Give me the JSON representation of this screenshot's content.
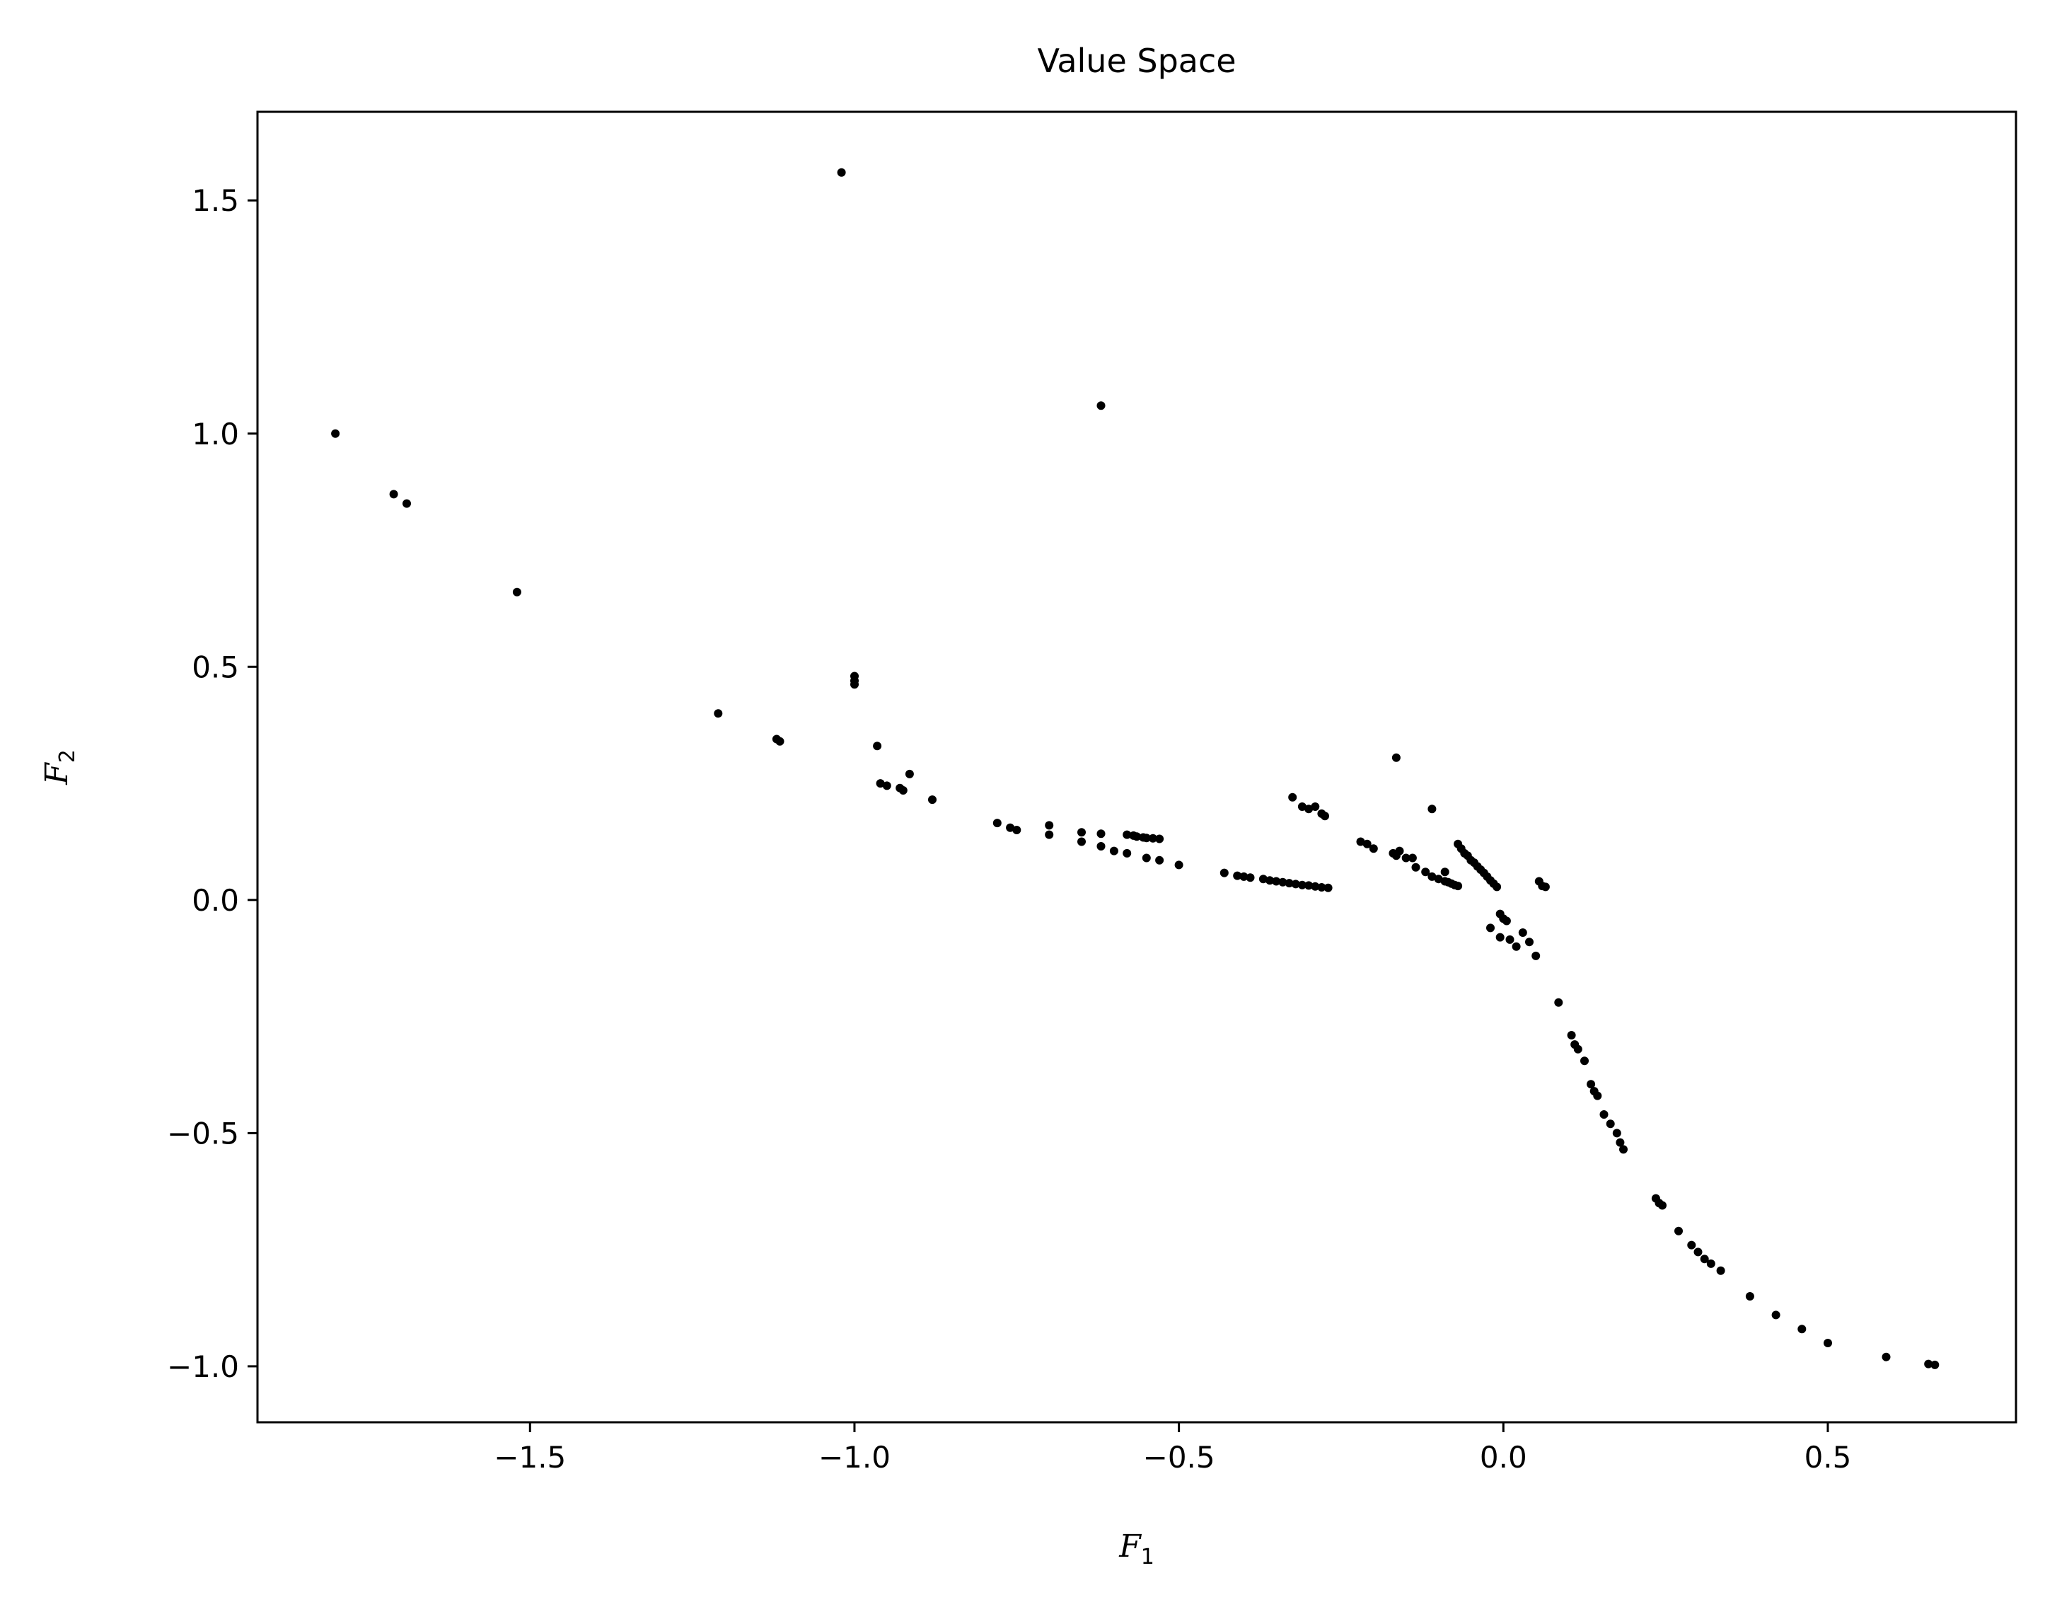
{
  "chart_data": {
    "type": "scatter",
    "title": "Value Space",
    "xlabel": {
      "base": "F",
      "sub": "1"
    },
    "ylabel": {
      "base": "F",
      "sub": "2"
    },
    "xlim": [
      -1.92,
      0.79
    ],
    "ylim": [
      -1.12,
      1.69
    ],
    "xticks": [
      -1.5,
      -1.0,
      -0.5,
      0.0,
      0.5
    ],
    "xtick_labels": [
      "−1.5",
      "−1.0",
      "−0.5",
      "0.0",
      "0.5"
    ],
    "yticks": [
      -1.0,
      -0.5,
      0.0,
      0.5,
      1.0,
      1.5
    ],
    "ytick_labels": [
      "−1.0",
      "−0.5",
      "0.0",
      "0.5",
      "1.0",
      "1.5"
    ],
    "grid": false,
    "marker_color": "#000000",
    "points": [
      [
        -1.8,
        1.0
      ],
      [
        -1.71,
        0.87
      ],
      [
        -1.69,
        0.85
      ],
      [
        -1.52,
        0.66
      ],
      [
        -1.02,
        1.56
      ],
      [
        -0.62,
        1.06
      ],
      [
        -1.21,
        0.4
      ],
      [
        -1.12,
        0.345
      ],
      [
        -1.115,
        0.34
      ],
      [
        -1.0,
        0.48
      ],
      [
        -1.0,
        0.47
      ],
      [
        -1.0,
        0.462
      ],
      [
        -0.965,
        0.33
      ],
      [
        -0.96,
        0.25
      ],
      [
        -0.95,
        0.245
      ],
      [
        -0.93,
        0.24
      ],
      [
        -0.925,
        0.235
      ],
      [
        -0.915,
        0.27
      ],
      [
        -0.88,
        0.215
      ],
      [
        -0.78,
        0.165
      ],
      [
        -0.76,
        0.155
      ],
      [
        -0.75,
        0.15
      ],
      [
        -0.7,
        0.16
      ],
      [
        -0.7,
        0.14
      ],
      [
        -0.65,
        0.145
      ],
      [
        -0.65,
        0.125
      ],
      [
        -0.62,
        0.142
      ],
      [
        -0.62,
        0.115
      ],
      [
        -0.6,
        0.105
      ],
      [
        -0.58,
        0.1
      ],
      [
        -0.58,
        0.14
      ],
      [
        -0.57,
        0.138
      ],
      [
        -0.565,
        0.136
      ],
      [
        -0.555,
        0.134
      ],
      [
        -0.55,
        0.133
      ],
      [
        -0.54,
        0.132
      ],
      [
        -0.53,
        0.131
      ],
      [
        -0.55,
        0.09
      ],
      [
        -0.53,
        0.085
      ],
      [
        -0.5,
        0.075
      ],
      [
        -0.43,
        0.058
      ],
      [
        -0.41,
        0.052
      ],
      [
        -0.4,
        0.05
      ],
      [
        -0.39,
        0.048
      ],
      [
        -0.37,
        0.045
      ],
      [
        -0.36,
        0.042
      ],
      [
        -0.35,
        0.04
      ],
      [
        -0.34,
        0.038
      ],
      [
        -0.33,
        0.036
      ],
      [
        -0.32,
        0.034
      ],
      [
        -0.31,
        0.032
      ],
      [
        -0.3,
        0.031
      ],
      [
        -0.29,
        0.029
      ],
      [
        -0.28,
        0.027
      ],
      [
        -0.27,
        0.026
      ],
      [
        -0.325,
        0.22
      ],
      [
        -0.31,
        0.2
      ],
      [
        -0.3,
        0.195
      ],
      [
        -0.29,
        0.2
      ],
      [
        -0.28,
        0.185
      ],
      [
        -0.275,
        0.18
      ],
      [
        -0.22,
        0.125
      ],
      [
        -0.21,
        0.12
      ],
      [
        -0.2,
        0.11
      ],
      [
        -0.17,
        0.1
      ],
      [
        -0.165,
        0.095
      ],
      [
        -0.16,
        0.105
      ],
      [
        -0.15,
        0.09
      ],
      [
        -0.14,
        0.09
      ],
      [
        -0.135,
        0.07
      ],
      [
        -0.12,
        0.06
      ],
      [
        -0.11,
        0.05
      ],
      [
        -0.1,
        0.045
      ],
      [
        -0.09,
        0.04
      ],
      [
        -0.085,
        0.038
      ],
      [
        -0.08,
        0.035
      ],
      [
        -0.075,
        0.032
      ],
      [
        -0.07,
        0.03
      ],
      [
        -0.165,
        0.305
      ],
      [
        -0.11,
        0.195
      ],
      [
        -0.09,
        0.06
      ],
      [
        -0.07,
        0.12
      ],
      [
        -0.065,
        0.11
      ],
      [
        -0.06,
        0.1
      ],
      [
        -0.055,
        0.095
      ],
      [
        -0.05,
        0.085
      ],
      [
        -0.045,
        0.08
      ],
      [
        -0.04,
        0.072
      ],
      [
        -0.035,
        0.065
      ],
      [
        -0.03,
        0.058
      ],
      [
        -0.025,
        0.05
      ],
      [
        -0.02,
        0.042
      ],
      [
        -0.015,
        0.035
      ],
      [
        -0.01,
        0.028
      ],
      [
        -0.005,
        -0.03
      ],
      [
        0.0,
        -0.04
      ],
      [
        0.005,
        -0.045
      ],
      [
        -0.02,
        -0.06
      ],
      [
        -0.005,
        -0.08
      ],
      [
        0.01,
        -0.085
      ],
      [
        0.02,
        -0.1
      ],
      [
        0.03,
        -0.07
      ],
      [
        0.04,
        -0.09
      ],
      [
        0.05,
        -0.12
      ],
      [
        0.055,
        0.04
      ],
      [
        0.06,
        0.03
      ],
      [
        0.065,
        0.028
      ],
      [
        0.085,
        -0.22
      ],
      [
        0.105,
        -0.29
      ],
      [
        0.11,
        -0.31
      ],
      [
        0.115,
        -0.32
      ],
      [
        0.125,
        -0.345
      ],
      [
        0.135,
        -0.395
      ],
      [
        0.14,
        -0.41
      ],
      [
        0.145,
        -0.42
      ],
      [
        0.155,
        -0.46
      ],
      [
        0.165,
        -0.48
      ],
      [
        0.175,
        -0.5
      ],
      [
        0.18,
        -0.52
      ],
      [
        0.185,
        -0.535
      ],
      [
        0.235,
        -0.64
      ],
      [
        0.24,
        -0.65
      ],
      [
        0.245,
        -0.655
      ],
      [
        0.27,
        -0.71
      ],
      [
        0.29,
        -0.74
      ],
      [
        0.3,
        -0.755
      ],
      [
        0.31,
        -0.77
      ],
      [
        0.32,
        -0.78
      ],
      [
        0.335,
        -0.795
      ],
      [
        0.38,
        -0.85
      ],
      [
        0.42,
        -0.89
      ],
      [
        0.46,
        -0.92
      ],
      [
        0.5,
        -0.95
      ],
      [
        0.59,
        -0.98
      ],
      [
        0.655,
        -0.995
      ],
      [
        0.665,
        -0.997
      ]
    ]
  }
}
